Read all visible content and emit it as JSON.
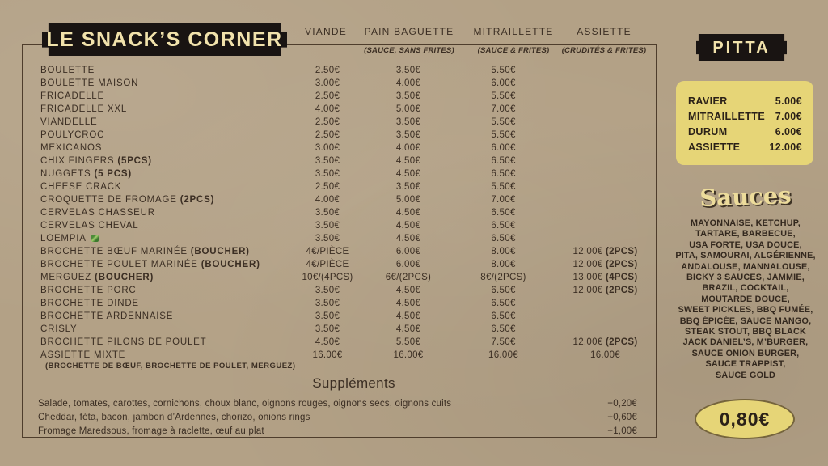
{
  "colors": {
    "background": "#b3a186",
    "ink": "#3b2e23",
    "badge_black": "#191412",
    "cream": "#f1e2ab",
    "panel_yellow": "#e6d577",
    "veg_green": "#4c8a38"
  },
  "header": {
    "title": "LE SNACK’S CORNER",
    "columns": [
      "VIANDE",
      "PAIN BAGUETTE",
      "MITRAILLETTE",
      "ASSIETTE"
    ],
    "subnotes": [
      "",
      "(SAUCE, SANS FRITES)",
      "(SAUCE & FRITES)",
      "(CRUDITÉS & FRITES)"
    ]
  },
  "menu": {
    "rows": [
      {
        "name": "BOULETTE",
        "bold": "",
        "veg": false,
        "prices": [
          "2.50€",
          "3.50€",
          "5.50€",
          ""
        ]
      },
      {
        "name": "BOULETTE MAISON",
        "bold": "",
        "veg": false,
        "prices": [
          "3.00€",
          "4.00€",
          "6.00€",
          ""
        ]
      },
      {
        "name": "FRICADELLE",
        "bold": "",
        "veg": false,
        "prices": [
          "2.50€",
          "3.50€",
          "5.50€",
          ""
        ]
      },
      {
        "name": "FRICADELLE XXL",
        "bold": "",
        "veg": false,
        "prices": [
          "4.00€",
          "5.00€",
          "7.00€",
          ""
        ]
      },
      {
        "name": "VIANDELLE",
        "bold": "",
        "veg": false,
        "prices": [
          "2.50€",
          "3.50€",
          "5.50€",
          ""
        ]
      },
      {
        "name": "POULYCROC",
        "bold": "",
        "veg": false,
        "prices": [
          "2.50€",
          "3.50€",
          "5.50€",
          ""
        ]
      },
      {
        "name": "MEXICANOS",
        "bold": "",
        "veg": false,
        "prices": [
          "3.00€",
          "4.00€",
          "6.00€",
          ""
        ]
      },
      {
        "name": "CHIX FINGERS",
        "bold": "(5PCS)",
        "veg": false,
        "prices": [
          "3.50€",
          "4.50€",
          "6.50€",
          ""
        ]
      },
      {
        "name": "NUGGETS",
        "bold": "(5 PCS)",
        "veg": false,
        "prices": [
          "3.50€",
          "4.50€",
          "6.50€",
          ""
        ]
      },
      {
        "name": "CHEESE CRACK",
        "bold": "",
        "veg": false,
        "prices": [
          "2.50€",
          "3.50€",
          "5.50€",
          ""
        ]
      },
      {
        "name": "CROQUETTE DE FROMAGE",
        "bold": "(2PCS)",
        "veg": false,
        "prices": [
          "4.00€",
          "5.00€",
          "7.00€",
          ""
        ]
      },
      {
        "name": "CERVELAS CHASSEUR",
        "bold": "",
        "veg": false,
        "prices": [
          "3.50€",
          "4.50€",
          "6.50€",
          ""
        ]
      },
      {
        "name": "CERVELAS CHEVAL",
        "bold": "",
        "veg": false,
        "prices": [
          "3.50€",
          "4.50€",
          "6.50€",
          ""
        ]
      },
      {
        "name": "LOEMPIA",
        "bold": "",
        "veg": true,
        "prices": [
          "3.50€",
          "4.50€",
          "6.50€",
          ""
        ]
      },
      {
        "name": "BROCHETTE BŒUF MARINÉE",
        "bold": "(BOUCHER)",
        "veg": false,
        "prices": [
          "4€/PIÈCE",
          "6.00€",
          "8.00€",
          "12.00€ (2PCS)"
        ]
      },
      {
        "name": "BROCHETTE POULET MARINÉE",
        "bold": "(BOUCHER)",
        "veg": false,
        "prices": [
          "4€/PIÈCE",
          "6.00€",
          "8.00€",
          "12.00€ (2PCS)"
        ]
      },
      {
        "name": "MERGUEZ",
        "bold": "(BOUCHER)",
        "veg": false,
        "prices": [
          "10€/(4PCS)",
          "6€/(2PCS)",
          "8€/(2PCS)",
          "13.00€ (4PCS)"
        ]
      },
      {
        "name": "BROCHETTE PORC",
        "bold": "",
        "veg": false,
        "prices": [
          "3.50€",
          "4.50€",
          "6.50€",
          "12.00€ (2PCS)"
        ]
      },
      {
        "name": "BROCHETTE DINDE",
        "bold": "",
        "veg": false,
        "prices": [
          "3.50€",
          "4.50€",
          "6.50€",
          ""
        ]
      },
      {
        "name": "BROCHETTE ARDENNAISE",
        "bold": "",
        "veg": false,
        "prices": [
          "3.50€",
          "4.50€",
          "6.50€",
          ""
        ]
      },
      {
        "name": "CRISLY",
        "bold": "",
        "veg": false,
        "prices": [
          "3.50€",
          "4.50€",
          "6.50€",
          ""
        ]
      },
      {
        "name": "BROCHETTE PILONS DE POULET",
        "bold": "",
        "veg": false,
        "prices": [
          "4.50€",
          "5.50€",
          "7.50€",
          "12.00€ (2PCS)"
        ]
      },
      {
        "name": "ASSIETTE MIXTE",
        "bold": "",
        "veg": false,
        "prices": [
          "16.00€",
          "16.00€",
          "16.00€",
          "16.00€"
        ]
      }
    ],
    "footnote": "(BROCHETTE DE BŒUF, BROCHETTE DE POULET, MERGUEZ)"
  },
  "supplements": {
    "title": "Suppléments",
    "items": [
      {
        "label": "Salade, tomates, carottes, cornichons, choux blanc, oignons rouges, oignons secs, oignons cuits",
        "price": "+0,20€"
      },
      {
        "label": "Cheddar, féta, bacon, jambon d’Ardennes, chorizo, onions rings",
        "price": "+0,60€"
      },
      {
        "label": "Fromage Maredsous, fromage à raclette, œuf au plat",
        "price": "+1,00€"
      }
    ]
  },
  "pitta": {
    "title": "PITTA",
    "items": [
      {
        "label": "RAVIER",
        "price": "5.00€"
      },
      {
        "label": "MITRAILLETTE",
        "price": "7.00€"
      },
      {
        "label": "DURUM",
        "price": "6.00€"
      },
      {
        "label": "ASSIETTE",
        "price": "12.00€"
      }
    ]
  },
  "sauces": {
    "title": "Sauces",
    "lines": [
      "MAYONNAISE, KETCHUP,",
      "TARTARE, BARBECUE,",
      "USA FORTE, USA DOUCE,",
      "PITA, SAMOURAI, ALGÉRIENNE,",
      "ANDALOUSE, MANNALOUSE,",
      "BICKY 3 SAUCES, JAMMIE,",
      "BRAZIL, COCKTAIL,",
      "MOUTARDE DOUCE,",
      "SWEET PICKLES, BBQ FUMÉE,",
      "BBQ ÉPICÉE, SAUCE MANGO,",
      "STEAK STOUT, BBQ BLACK",
      "JACK DANIEL’S, M’BURGER,",
      "SAUCE ONION BURGER,",
      "SAUCE TRAPPIST,",
      "SAUCE GOLD"
    ],
    "extra_price": "0,80€"
  }
}
